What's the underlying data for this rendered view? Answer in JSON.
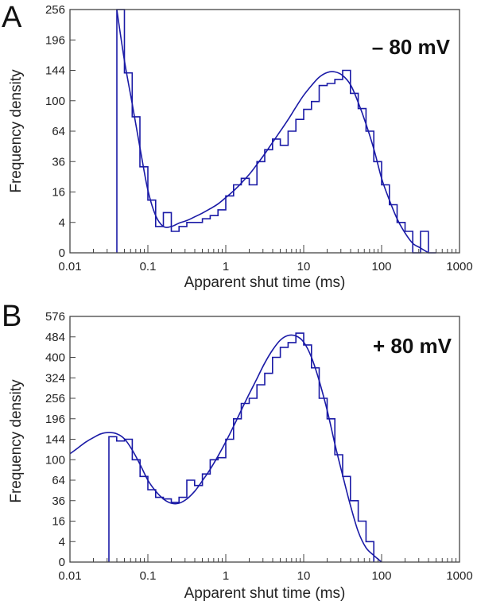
{
  "chart_data": [
    {
      "type": "histogram",
      "panel_label": "A",
      "annotation": "– 80 mV",
      "xlabel": "Apparent shut time (ms)",
      "ylabel": "Frequency density",
      "x_scale": "log",
      "y_scale": "sqrt",
      "xlim": [
        0.01,
        1000
      ],
      "ylim": [
        0,
        256
      ],
      "x_ticks": [
        0.01,
        0.1,
        1,
        10,
        100,
        1000
      ],
      "x_tick_labels": [
        "0.01",
        "0.1",
        "1",
        "10",
        "100",
        "1000"
      ],
      "y_ticks": [
        0,
        4,
        16,
        36,
        64,
        100,
        144,
        196,
        256
      ],
      "y_tick_labels": [
        "0",
        "4",
        "16",
        "36",
        "64",
        "100",
        "144",
        "196",
        "256"
      ],
      "grid": false,
      "histogram": {
        "bin_edges": [
          0.04,
          0.05,
          0.063,
          0.079,
          0.1,
          0.126,
          0.158,
          0.2,
          0.251,
          0.316,
          0.398,
          0.501,
          0.631,
          0.794,
          1,
          1.26,
          1.58,
          2,
          2.51,
          3.16,
          3.98,
          5.01,
          6.31,
          7.94,
          10,
          12.6,
          15.8,
          20,
          25.1,
          31.6,
          39.8,
          50.1,
          63.1,
          79.4,
          100,
          126,
          158,
          200,
          251,
          316,
          398,
          501
        ],
        "density": [
          256,
          140,
          80,
          32,
          12,
          3,
          7,
          2,
          3,
          4,
          4,
          5,
          6,
          8,
          14,
          20,
          24,
          20,
          36,
          46,
          56,
          50,
          64,
          77,
          89,
          99,
          121,
          124,
          130,
          144,
          110,
          90,
          64,
          36,
          20,
          10,
          4,
          2,
          0,
          2,
          0
        ]
      },
      "fit_curve": {
        "x": [
          0.04,
          0.05,
          0.063,
          0.08,
          0.1,
          0.126,
          0.158,
          0.2,
          0.25,
          0.316,
          0.4,
          0.5,
          0.63,
          0.8,
          1,
          1.26,
          1.58,
          2,
          2.5,
          3.16,
          4,
          5,
          6.3,
          8,
          10,
          12.6,
          15.8,
          20,
          25,
          31.6,
          40,
          50,
          63,
          80,
          100,
          126,
          158,
          200,
          250,
          316,
          400
        ],
        "y": [
          255,
          160,
          96,
          46,
          17,
          6,
          3,
          3,
          3.8,
          4.5,
          5.6,
          6.8,
          8.4,
          10.4,
          13.2,
          16.6,
          21,
          26.6,
          33.6,
          42.3,
          52.9,
          63.9,
          76.6,
          92.3,
          107.4,
          121,
          133.4,
          140.6,
          141.6,
          136,
          122,
          98,
          72,
          46,
          24,
          12,
          5,
          1.7,
          0.4,
          0.1,
          0
        ]
      }
    },
    {
      "type": "histogram",
      "panel_label": "B",
      "annotation": "+ 80 mV",
      "xlabel": "Apparent shut time (ms)",
      "ylabel": "Frequency density",
      "x_scale": "log",
      "y_scale": "sqrt",
      "xlim": [
        0.01,
        1000
      ],
      "ylim": [
        0,
        576
      ],
      "x_ticks": [
        0.01,
        0.1,
        1,
        10,
        100,
        1000
      ],
      "x_tick_labels": [
        "0.01",
        "0.1",
        "1",
        "10",
        "100",
        "1000"
      ],
      "y_ticks": [
        0,
        4,
        16,
        36,
        64,
        100,
        144,
        196,
        256,
        324,
        400,
        484,
        576
      ],
      "y_tick_labels": [
        "0",
        "4",
        "16",
        "36",
        "64",
        "100",
        "144",
        "196",
        "256",
        "324",
        "400",
        "484",
        "576"
      ],
      "grid": false,
      "histogram": {
        "bin_edges": [
          0.0316,
          0.0398,
          0.0501,
          0.0631,
          0.0794,
          0.1,
          0.126,
          0.158,
          0.2,
          0.251,
          0.316,
          0.398,
          0.501,
          0.631,
          0.794,
          1,
          1.26,
          1.58,
          2,
          2.51,
          3.16,
          3.98,
          5.01,
          6.31,
          7.94,
          10,
          12.6,
          15.8,
          20,
          25.1,
          31.6,
          39.8,
          50.1,
          63.1,
          79.4
        ],
        "density": [
          150,
          140,
          144,
          100,
          70,
          50,
          40,
          38,
          34,
          40,
          64,
          56,
          74,
          100,
          104,
          144,
          196,
          240,
          256,
          300,
          340,
          400,
          440,
          460,
          500,
          450,
          360,
          256,
          196,
          110,
          70,
          36,
          16,
          4
        ]
      },
      "fit_curve": {
        "x": [
          0.01,
          0.0126,
          0.0158,
          0.02,
          0.025,
          0.0316,
          0.04,
          0.05,
          0.063,
          0.08,
          0.1,
          0.126,
          0.158,
          0.2,
          0.25,
          0.316,
          0.4,
          0.5,
          0.63,
          0.8,
          1,
          1.26,
          1.58,
          2,
          2.5,
          3.16,
          4,
          5,
          6.3,
          8,
          10,
          12.6,
          15.8,
          20,
          25,
          31.6,
          40,
          50,
          63,
          80,
          100
        ],
        "y": [
          112,
          124,
          137,
          148,
          157,
          160,
          157,
          145,
          120,
          90,
          64,
          48,
          38,
          33,
          33,
          38,
          48,
          63,
          82,
          108,
          138,
          176,
          220,
          270,
          320,
          378,
          430,
          470,
          490,
          488,
          462,
          400,
          314,
          220,
          135,
          72,
          30,
          9,
          2,
          0.4,
          0
        ]
      }
    }
  ]
}
